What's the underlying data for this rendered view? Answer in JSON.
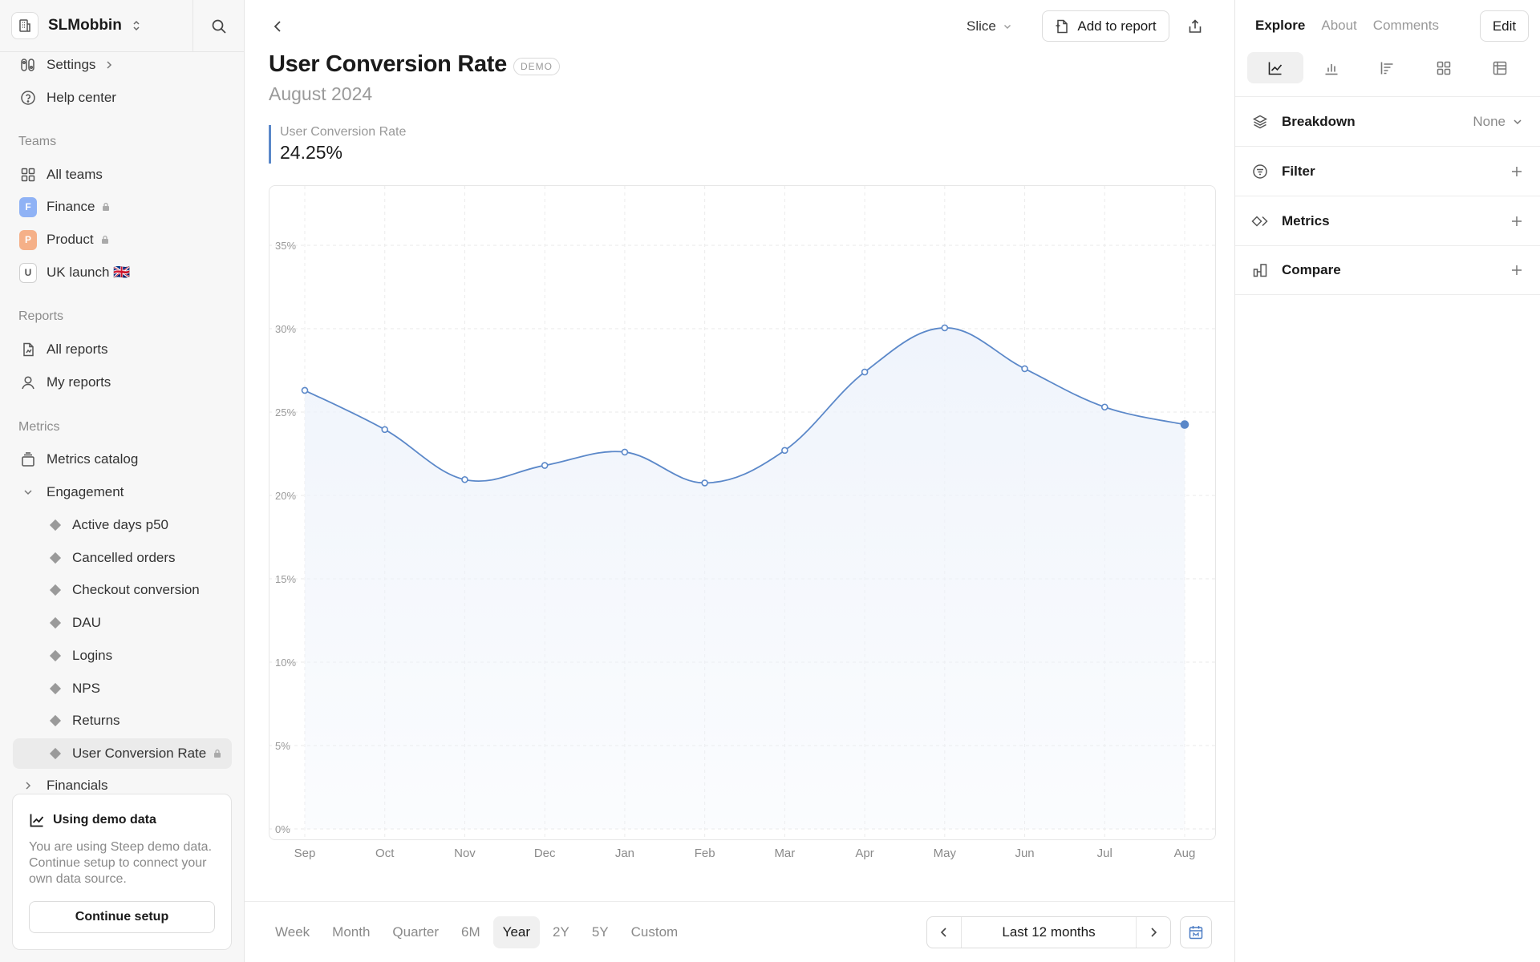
{
  "workspace": {
    "name": "SLMobbin"
  },
  "sidebar": {
    "top_items": [
      {
        "label": "Settings",
        "icon": "settings-icon"
      },
      {
        "label": "Help center",
        "icon": "help-icon"
      }
    ],
    "teams_label": "Teams",
    "teams": [
      {
        "label": "All teams",
        "icon": "grid-icon"
      },
      {
        "label": "Finance",
        "badge": "F",
        "color": "#8fb2f5",
        "locked": true
      },
      {
        "label": "Product",
        "badge": "P",
        "color": "#f5b088",
        "locked": true
      },
      {
        "label": "UK launch 🇬🇧",
        "badge": "U",
        "color": "#ffffff"
      }
    ],
    "reports_label": "Reports",
    "reports": [
      {
        "label": "All reports",
        "icon": "report-icon"
      },
      {
        "label": "My reports",
        "icon": "user-icon"
      }
    ],
    "metrics_label": "Metrics",
    "metrics_catalog": "Metrics catalog",
    "engagement_label": "Engagement",
    "engagement_items": [
      "Active days p50",
      "Cancelled orders",
      "Checkout conversion",
      "DAU",
      "Logins",
      "NPS",
      "Returns",
      "User Conversion Rate"
    ],
    "active_item": "User Conversion Rate",
    "financials_label": "Financials",
    "demo_card": {
      "title": "Using demo data",
      "text": "You are using Steep demo data. Continue setup to connect your own data source.",
      "button": "Continue setup"
    }
  },
  "header": {
    "slice_label": "Slice",
    "add_to_report": "Add to report"
  },
  "page": {
    "title": "User Conversion Rate",
    "badge": "DEMO",
    "subtitle": "August 2024",
    "kpi_label": "User Conversion Rate",
    "kpi_value": "24.25%"
  },
  "chart_data": {
    "type": "area",
    "x": [
      "Sep",
      "Oct",
      "Nov",
      "Dec",
      "Jan",
      "Feb",
      "Mar",
      "Apr",
      "May",
      "Jun",
      "Jul",
      "Aug"
    ],
    "series": [
      {
        "values": [
          26.3,
          23.95,
          20.95,
          21.8,
          22.6,
          20.75,
          22.7,
          27.4,
          30.05,
          27.6,
          25.3,
          24.25
        ]
      }
    ],
    "yticks": [
      "0%",
      "5%",
      "10%",
      "15%",
      "20%",
      "25%",
      "30%",
      "35%"
    ],
    "ylim": [
      0,
      35
    ],
    "grid": true,
    "line_color": "#5b88c9",
    "fill_color": "#eef3fb"
  },
  "period_tabs": [
    "Week",
    "Month",
    "Quarter",
    "6M",
    "Year",
    "2Y",
    "5Y",
    "Custom"
  ],
  "active_period": "Year",
  "range_label": "Last 12 months",
  "right_panel": {
    "tabs": [
      "Explore",
      "About",
      "Comments"
    ],
    "active_tab": "Explore",
    "edit_label": "Edit",
    "viz_types": [
      "line-chart-icon",
      "bar-chart-icon",
      "horizontal-bar-icon",
      "grid-icon",
      "pivot-icon"
    ],
    "rows": [
      {
        "label": "Breakdown",
        "value": "None",
        "icon": "layers-icon"
      },
      {
        "label": "Filter",
        "icon": "filter-icon"
      },
      {
        "label": "Metrics",
        "icon": "metrics-icon"
      },
      {
        "label": "Compare",
        "icon": "compare-icon"
      }
    ]
  }
}
